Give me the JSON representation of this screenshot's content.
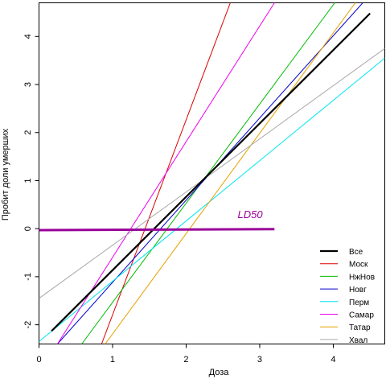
{
  "chart_data": {
    "type": "line",
    "xlabel": "Доза",
    "ylabel": "Пробит доли умерших",
    "xlim": [
      0,
      4.7
    ],
    "ylim": [
      -2.4,
      4.7
    ],
    "x_ticks": [
      0,
      1,
      2,
      3,
      4
    ],
    "x_tick_labels": [
      "0",
      "1",
      "2",
      "3",
      "4"
    ],
    "y_ticks": [
      -2,
      -1,
      0,
      1,
      2,
      3,
      4
    ],
    "y_tick_labels": [
      "-2",
      "-1",
      "0",
      "1",
      "2",
      "3",
      "4"
    ],
    "grid": false,
    "legend_position": "bottom-right",
    "series": [
      {
        "name": "Все",
        "color": "#000000",
        "width": 2.2,
        "points": [
          [
            0.17,
            -2.13
          ],
          [
            4.5,
            4.48
          ]
        ]
      },
      {
        "name": "Моск",
        "color": "#dd0000",
        "width": 1,
        "points": [
          [
            0.85,
            -2.4
          ],
          [
            2.6,
            4.7
          ]
        ]
      },
      {
        "name": "НжНов",
        "color": "#00bb00",
        "width": 1,
        "points": [
          [
            0.58,
            -2.4
          ],
          [
            4.02,
            4.7
          ]
        ]
      },
      {
        "name": "Новг",
        "color": "#0000cc",
        "width": 1,
        "points": [
          [
            0.25,
            -2.4
          ],
          [
            4.4,
            4.7
          ]
        ]
      },
      {
        "name": "Перм",
        "color": "#00e5ee",
        "width": 1,
        "points": [
          [
            0.0,
            -2.35
          ],
          [
            4.7,
            3.55
          ]
        ]
      },
      {
        "name": "Самар",
        "color": "#ee00ee",
        "width": 1,
        "points": [
          [
            0.25,
            -2.4
          ],
          [
            3.2,
            4.7
          ]
        ]
      },
      {
        "name": "Татар",
        "color": "#e6a000",
        "width": 1,
        "points": [
          [
            0.9,
            -2.4
          ],
          [
            4.3,
            4.7
          ]
        ]
      },
      {
        "name": "Хвал",
        "color": "#aaaaaa",
        "width": 1,
        "points": [
          [
            0.0,
            -1.45
          ],
          [
            4.7,
            3.75
          ]
        ]
      }
    ],
    "ld50_line": {
      "color": "#990099",
      "width": 3,
      "points": [
        [
          0.0,
          -0.03
        ],
        [
          3.2,
          -0.01
        ]
      ]
    },
    "annotation": {
      "text": "LD50",
      "color": "#990099",
      "x": 2.7,
      "y": 0.22
    }
  }
}
